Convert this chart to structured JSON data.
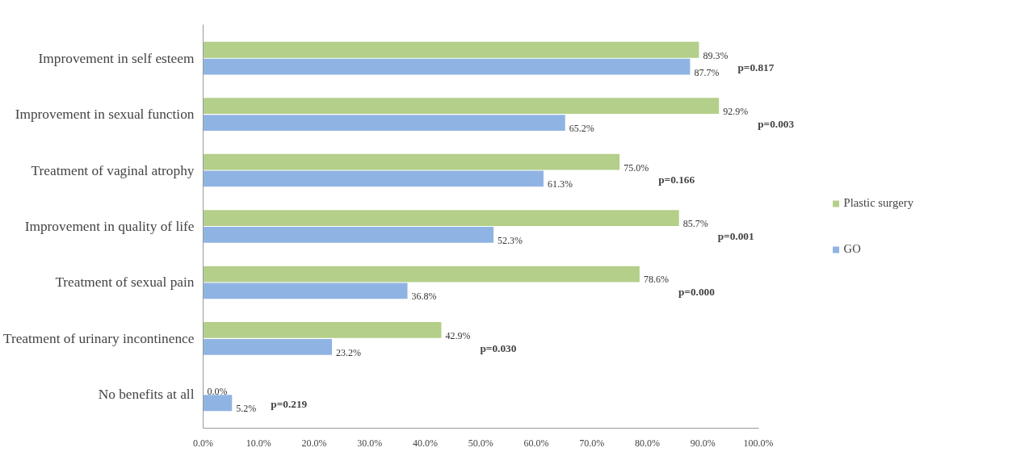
{
  "chart_data": {
    "type": "bar",
    "orientation": "horizontal",
    "categories": [
      "Improvement in self esteem",
      "Improvement in sexual function",
      "Treatment of vaginal atrophy",
      "Improvement in quality of life",
      "Treatment of sexual pain",
      "Treatment of urinary incontinence",
      "No benefits at all"
    ],
    "series": [
      {
        "name": "Plastic surgery",
        "color": "#b3cf8a",
        "values": [
          89.3,
          92.9,
          75.0,
          85.7,
          78.6,
          42.9,
          0.0
        ],
        "value_labels": [
          "89.3%",
          "92.9%",
          "75.0%",
          "85.7%",
          "78.6%",
          "42.9%",
          "0.0%"
        ]
      },
      {
        "name": "GO",
        "color": "#8fb4e3",
        "values": [
          87.7,
          65.2,
          61.3,
          52.3,
          36.8,
          23.2,
          5.2
        ],
        "value_labels": [
          "87.7%",
          "65.2%",
          "61.3%",
          "52.3%",
          "36.8%",
          "23.2%",
          "5.2%"
        ]
      }
    ],
    "xlim": [
      0,
      100
    ],
    "xticks": [
      {
        "value": 0,
        "label": "0.0%"
      },
      {
        "value": 10,
        "label": "10.0%"
      },
      {
        "value": 20,
        "label": "20.0%"
      },
      {
        "value": 30,
        "label": "30.0%"
      },
      {
        "value": 40,
        "label": "40.0%"
      },
      {
        "value": 50,
        "label": "50.0%"
      },
      {
        "value": 60,
        "label": "60.0%"
      },
      {
        "value": 70,
        "label": "70.0%"
      },
      {
        "value": 80,
        "label": "80.0%"
      },
      {
        "value": 90,
        "label": "90.0%"
      },
      {
        "value": 100,
        "label": "100.0%"
      }
    ],
    "annotations": [
      "p=0.817",
      "p=0.003",
      "p=0.166",
      "p=0.001",
      "p=0.000",
      "p=0.030",
      "p=0.219"
    ],
    "grid": false,
    "legend": "right"
  }
}
